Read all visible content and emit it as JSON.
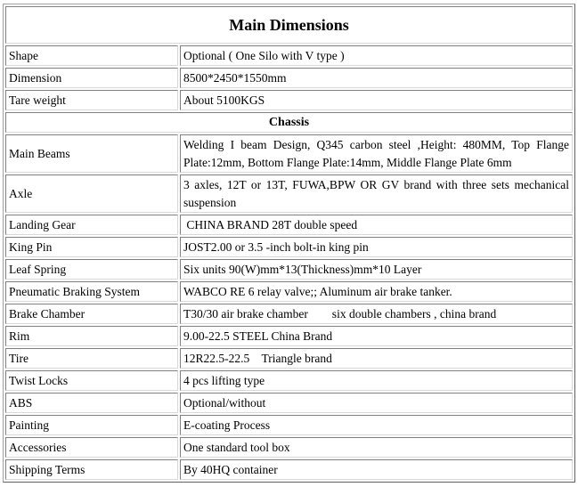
{
  "title": "Main Dimensions",
  "rows_top": [
    {
      "label": "Shape",
      "value": "Optional ( One Silo with V type )"
    },
    {
      "label": "Dimension",
      "value": "8500*2450*1550mm"
    },
    {
      "label": "Tare weight",
      "value": "About 5100KGS"
    }
  ],
  "section": "Chassis",
  "rows_chassis": [
    {
      "label": "Main Beams",
      "value": "Welding I beam Design, Q345 carbon steel ,Height: 480MM, Top Flange Plate:12mm, Bottom Flange Plate:14mm, Middle Flange Plate 6mm"
    },
    {
      "label": "Axle",
      "value": "3 axles, 12T or 13T, FUWA,BPW OR GV brand    with three sets mechanical suspension"
    },
    {
      "label": "Landing Gear",
      "value": " CHINA BRAND 28T double speed"
    },
    {
      "label": "King Pin",
      "value": "JOST2.00 or 3.5 -inch bolt-in king pin"
    },
    {
      "label": "Leaf Spring",
      "value": "Six units 90(W)mm*13(Thickness)mm*10 Layer"
    },
    {
      "label": "Pneumatic Braking System",
      "value": "WABCO RE 6 relay valve;; Aluminum air brake tanker."
    },
    {
      "label": "Brake Chamber",
      "value": "T30/30 air brake chamber        six double chambers , china brand"
    },
    {
      "label": "Rim",
      "value": "9.00-22.5 STEEL China Brand"
    },
    {
      "label": "Tire",
      "value": "12R22.5-22.5    Triangle brand"
    },
    {
      "label": "Twist Locks",
      "value": "4 pcs lifting type"
    },
    {
      "label": "ABS",
      "value": "Optional/without"
    },
    {
      "label": "Painting",
      "value": "E-coating Process"
    },
    {
      "label": "Accessories",
      "value": "One standard tool box"
    },
    {
      "label": "Shipping Terms",
      "value": "By 40HQ container"
    }
  ]
}
